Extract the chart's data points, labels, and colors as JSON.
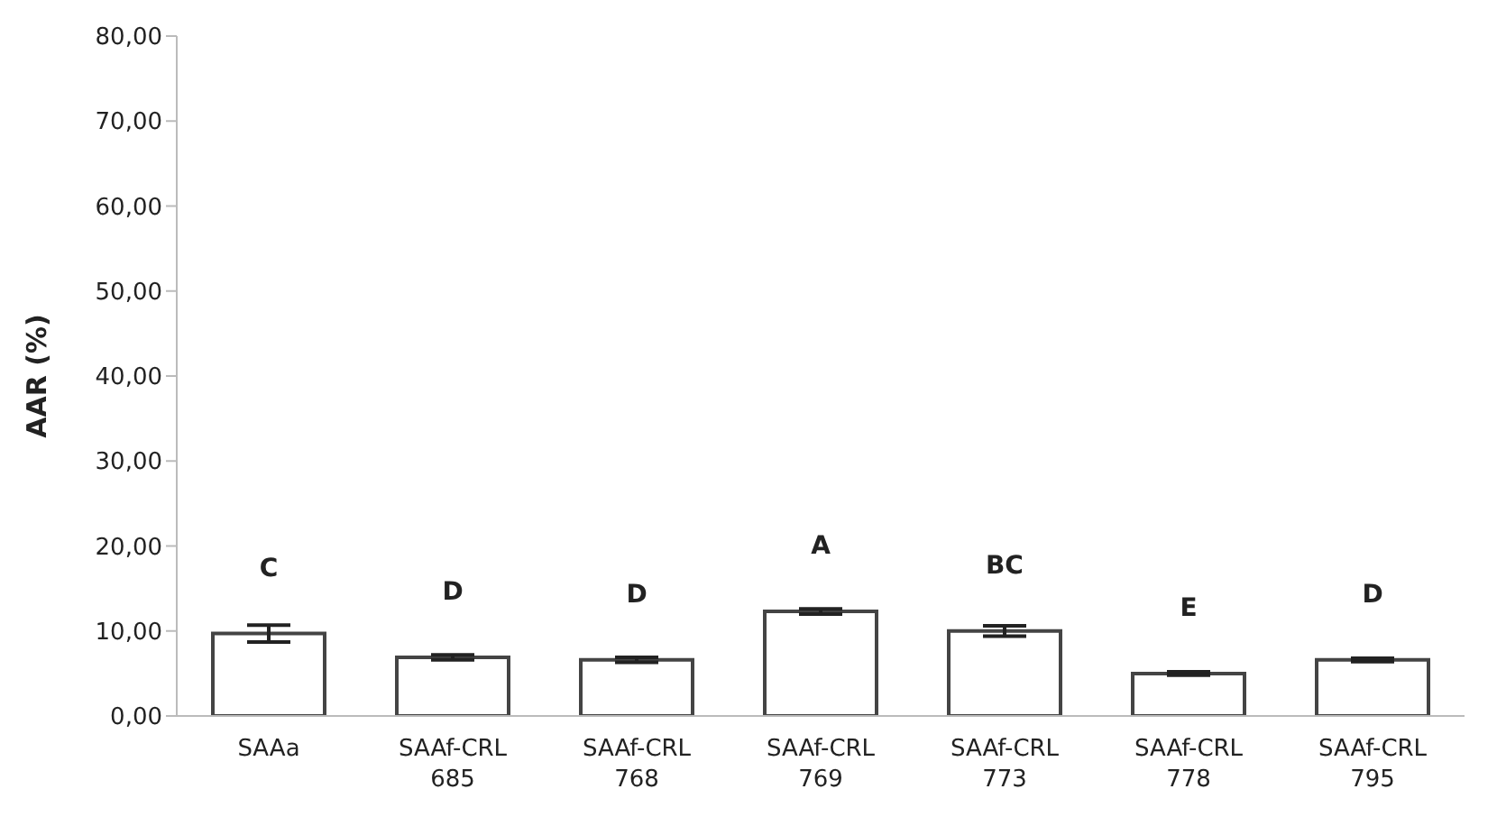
{
  "chart_data": {
    "type": "bar",
    "ylabel": "AAR (%)",
    "categories": [
      "SAAa",
      "SAAf-CRL 685",
      "SAAf-CRL 768",
      "SAAf-CRL 769",
      "SAAf-CRL 773",
      "SAAf-CRL 778",
      "SAAf-CRL 795"
    ],
    "values": [
      9.7,
      6.9,
      6.6,
      12.3,
      10.0,
      5.0,
      6.6
    ],
    "errors": [
      1.0,
      0.3,
      0.3,
      0.3,
      0.6,
      0.2,
      0.2
    ],
    "color": "#ffffff",
    "ylim": [
      0,
      80
    ],
    "yticks": [
      {
        "value": 0,
        "label": "0,00"
      },
      {
        "value": 10,
        "label": "10,00"
      },
      {
        "value": 20,
        "label": "20,00"
      },
      {
        "value": 30,
        "label": "30,00"
      },
      {
        "value": 40,
        "label": "40,00"
      },
      {
        "value": 50,
        "label": "50,00"
      },
      {
        "value": 60,
        "label": "60,00"
      },
      {
        "value": 70,
        "label": "70,00"
      },
      {
        "value": 80,
        "label": "80,00"
      }
    ],
    "grid": false,
    "legend": false,
    "annotations": [
      {
        "text": "C",
        "x": "SAAa",
        "y": 9.7
      },
      {
        "text": "D",
        "x": "SAAf-CRL 685",
        "y": 6.9
      },
      {
        "text": "D",
        "x": "SAAf-CRL 768",
        "y": 6.6
      },
      {
        "text": "A",
        "x": "SAAf-CRL 769",
        "y": 12.3
      },
      {
        "text": "BC",
        "x": "SAAf-CRL 773",
        "y": 10.0
      },
      {
        "text": "E",
        "x": "SAAf-CRL 778",
        "y": 5.0
      },
      {
        "text": "D",
        "x": "SAAf-CRL 795",
        "y": 6.6
      }
    ]
  }
}
